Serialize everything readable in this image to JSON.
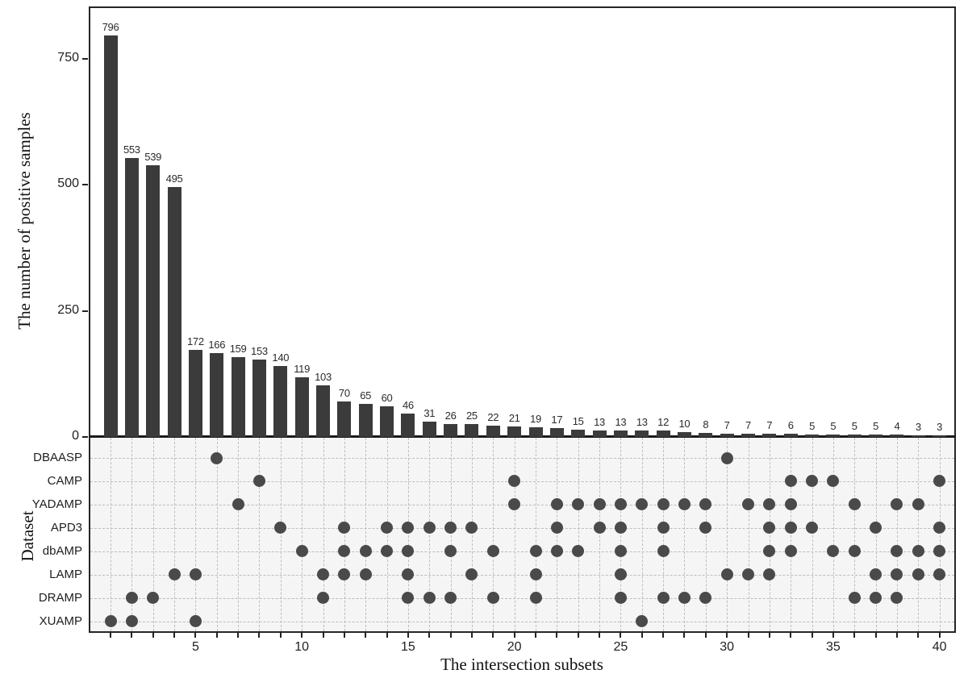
{
  "chart_data": {
    "type": "bar",
    "variant": "upset-plot",
    "title": "",
    "ylabel": "The number of positive samples",
    "xlabel": "The intersection subsets",
    "matrix_axis_label": "Dataset",
    "y_ticks": [
      0,
      250,
      500,
      750
    ],
    "x_ticks": [
      5,
      10,
      15,
      20,
      25,
      30,
      35,
      40
    ],
    "ylim": [
      0,
      850
    ],
    "grid": "dashed-matrix-only",
    "legend": "none",
    "sets": [
      "DBAASP",
      "CAMP",
      "YADAMP",
      "APD3",
      "dbAMP",
      "LAMP",
      "DRAMP",
      "XUAMP"
    ],
    "columns": [
      {
        "value": 796,
        "sets": [
          "XUAMP"
        ]
      },
      {
        "value": 553,
        "sets": [
          "DRAMP",
          "XUAMP"
        ]
      },
      {
        "value": 539,
        "sets": [
          "DRAMP"
        ]
      },
      {
        "value": 495,
        "sets": [
          "LAMP"
        ]
      },
      {
        "value": 172,
        "sets": [
          "LAMP",
          "XUAMP"
        ]
      },
      {
        "value": 166,
        "sets": [
          "DBAASP"
        ]
      },
      {
        "value": 159,
        "sets": [
          "YADAMP"
        ]
      },
      {
        "value": 153,
        "sets": [
          "CAMP"
        ]
      },
      {
        "value": 140,
        "sets": [
          "APD3"
        ]
      },
      {
        "value": 119,
        "sets": [
          "dbAMP"
        ]
      },
      {
        "value": 103,
        "sets": [
          "LAMP",
          "DRAMP"
        ]
      },
      {
        "value": 70,
        "sets": [
          "APD3",
          "dbAMP",
          "LAMP"
        ]
      },
      {
        "value": 65,
        "sets": [
          "dbAMP",
          "LAMP"
        ]
      },
      {
        "value": 60,
        "sets": [
          "APD3",
          "dbAMP"
        ]
      },
      {
        "value": 46,
        "sets": [
          "APD3",
          "dbAMP",
          "LAMP",
          "DRAMP"
        ]
      },
      {
        "value": 31,
        "sets": [
          "APD3",
          "DRAMP"
        ]
      },
      {
        "value": 26,
        "sets": [
          "APD3",
          "dbAMP",
          "DRAMP"
        ]
      },
      {
        "value": 25,
        "sets": [
          "APD3",
          "LAMP"
        ]
      },
      {
        "value": 22,
        "sets": [
          "dbAMP",
          "DRAMP"
        ]
      },
      {
        "value": 21,
        "sets": [
          "CAMP",
          "YADAMP"
        ]
      },
      {
        "value": 19,
        "sets": [
          "dbAMP",
          "LAMP",
          "DRAMP"
        ]
      },
      {
        "value": 17,
        "sets": [
          "YADAMP",
          "APD3",
          "dbAMP"
        ]
      },
      {
        "value": 15,
        "sets": [
          "YADAMP",
          "dbAMP"
        ]
      },
      {
        "value": 13,
        "sets": [
          "YADAMP",
          "APD3"
        ]
      },
      {
        "value": 13,
        "sets": [
          "YADAMP",
          "APD3",
          "dbAMP",
          "LAMP",
          "DRAMP"
        ]
      },
      {
        "value": 13,
        "sets": [
          "YADAMP",
          "XUAMP"
        ]
      },
      {
        "value": 12,
        "sets": [
          "YADAMP",
          "APD3",
          "dbAMP",
          "DRAMP"
        ]
      },
      {
        "value": 10,
        "sets": [
          "YADAMP",
          "DRAMP"
        ]
      },
      {
        "value": 8,
        "sets": [
          "YADAMP",
          "APD3",
          "DRAMP"
        ]
      },
      {
        "value": 7,
        "sets": [
          "DBAASP",
          "LAMP"
        ]
      },
      {
        "value": 7,
        "sets": [
          "YADAMP",
          "LAMP"
        ]
      },
      {
        "value": 7,
        "sets": [
          "YADAMP",
          "APD3",
          "dbAMP",
          "LAMP"
        ]
      },
      {
        "value": 6,
        "sets": [
          "CAMP",
          "YADAMP",
          "APD3",
          "dbAMP"
        ]
      },
      {
        "value": 5,
        "sets": [
          "CAMP",
          "APD3"
        ]
      },
      {
        "value": 5,
        "sets": [
          "CAMP",
          "dbAMP"
        ]
      },
      {
        "value": 5,
        "sets": [
          "YADAMP",
          "dbAMP",
          "DRAMP"
        ]
      },
      {
        "value": 5,
        "sets": [
          "APD3",
          "LAMP",
          "DRAMP"
        ]
      },
      {
        "value": 4,
        "sets": [
          "YADAMP",
          "dbAMP",
          "LAMP",
          "DRAMP"
        ]
      },
      {
        "value": 3,
        "sets": [
          "YADAMP",
          "dbAMP",
          "LAMP"
        ]
      },
      {
        "value": 3,
        "sets": [
          "CAMP",
          "APD3",
          "dbAMP",
          "LAMP"
        ]
      }
    ]
  },
  "colors": {
    "bar": "#3b3b3b",
    "dot": "#4a4a4a",
    "grid": "#bdbdbd",
    "matrix_background": "#f5f5f5",
    "axis": "#262626",
    "text": "#1f1f1f"
  }
}
